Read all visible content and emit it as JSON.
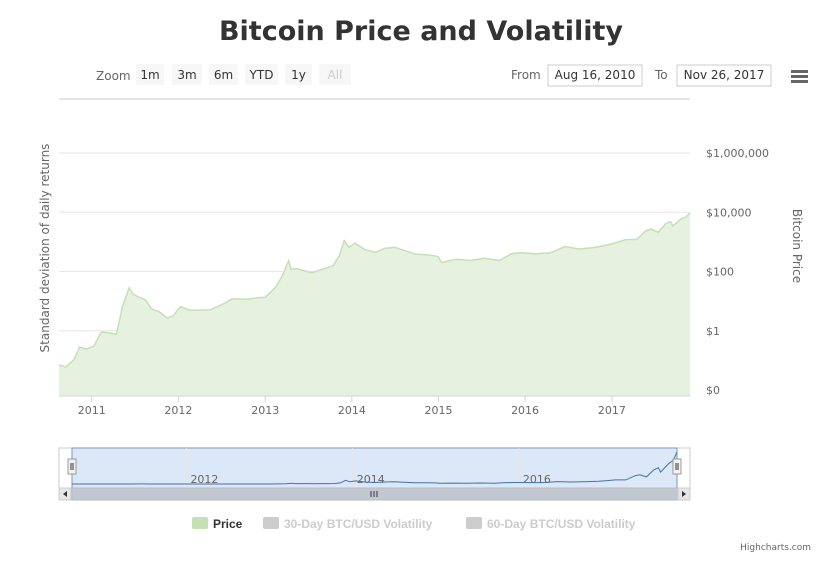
{
  "chart_data": {
    "type": "area",
    "title": "Bitcoin Price and Volatility",
    "left_axis_label": "Standard deviation of daily returns",
    "right_axis_label": "Bitcoin Price",
    "y_scale": "log",
    "y_ticks": [
      "$0",
      "$1",
      "$100",
      "$10,000",
      "$1,000,000"
    ],
    "y_tick_values": [
      0.01,
      1,
      100,
      10000,
      1000000
    ],
    "x_ticks": [
      "2011",
      "2012",
      "2013",
      "2014",
      "2015",
      "2016",
      "2017"
    ],
    "x_range": [
      "2010-08-16",
      "2017-11-26"
    ],
    "grid": true,
    "series": [
      {
        "name": "Price",
        "color": "#c5e0b4",
        "visible": true,
        "points": [
          [
            "2010-08-16",
            0.07
          ],
          [
            "2010-09-15",
            0.06
          ],
          [
            "2010-10-20",
            0.11
          ],
          [
            "2010-11-10",
            0.28
          ],
          [
            "2010-12-10",
            0.24
          ],
          [
            "2011-01-10",
            0.3
          ],
          [
            "2011-02-10",
            0.9
          ],
          [
            "2011-03-15",
            0.85
          ],
          [
            "2011-04-15",
            0.75
          ],
          [
            "2011-05-10",
            6.5
          ],
          [
            "2011-06-08",
            28
          ],
          [
            "2011-06-25",
            17
          ],
          [
            "2011-07-20",
            13.5
          ],
          [
            "2011-08-15",
            11
          ],
          [
            "2011-09-10",
            5.5
          ],
          [
            "2011-10-10",
            4.5
          ],
          [
            "2011-11-15",
            2.7
          ],
          [
            "2011-12-10",
            3.2
          ],
          [
            "2012-01-10",
            6.5
          ],
          [
            "2012-02-15",
            5
          ],
          [
            "2012-03-15",
            4.9
          ],
          [
            "2012-05-15",
            5.1
          ],
          [
            "2012-07-15",
            8.5
          ],
          [
            "2012-08-15",
            12
          ],
          [
            "2012-10-15",
            11.5
          ],
          [
            "2012-12-01",
            13
          ],
          [
            "2013-01-01",
            13.5
          ],
          [
            "2013-02-15",
            30
          ],
          [
            "2013-03-15",
            75
          ],
          [
            "2013-04-10",
            230
          ],
          [
            "2013-04-20",
            120
          ],
          [
            "2013-05-15",
            125
          ],
          [
            "2013-06-15",
            105
          ],
          [
            "2013-07-15",
            90
          ],
          [
            "2013-08-15",
            110
          ],
          [
            "2013-09-15",
            130
          ],
          [
            "2013-10-15",
            160
          ],
          [
            "2013-11-10",
            350
          ],
          [
            "2013-11-30",
            1100
          ],
          [
            "2013-12-20",
            650
          ],
          [
            "2014-01-15",
            900
          ],
          [
            "2014-02-25",
            550
          ],
          [
            "2014-04-10",
            440
          ],
          [
            "2014-05-20",
            600
          ],
          [
            "2014-07-01",
            650
          ],
          [
            "2014-08-15",
            500
          ],
          [
            "2014-09-30",
            380
          ],
          [
            "2014-11-15",
            370
          ],
          [
            "2014-12-30",
            320
          ],
          [
            "2015-01-15",
            200
          ],
          [
            "2015-03-15",
            260
          ],
          [
            "2015-05-15",
            235
          ],
          [
            "2015-07-15",
            280
          ],
          [
            "2015-09-15",
            235
          ],
          [
            "2015-11-05",
            400
          ],
          [
            "2015-12-15",
            430
          ],
          [
            "2016-02-15",
            400
          ],
          [
            "2016-04-15",
            425
          ],
          [
            "2016-06-18",
            700
          ],
          [
            "2016-08-15",
            575
          ],
          [
            "2016-10-15",
            640
          ],
          [
            "2016-12-15",
            790
          ],
          [
            "2017-01-10",
            900
          ],
          [
            "2017-03-01",
            1200
          ],
          [
            "2017-04-15",
            1200
          ],
          [
            "2017-05-25",
            2400
          ],
          [
            "2017-06-15",
            2700
          ],
          [
            "2017-07-15",
            2100
          ],
          [
            "2017-08-15",
            4100
          ],
          [
            "2017-09-05",
            4800
          ],
          [
            "2017-09-15",
            3500
          ],
          [
            "2017-10-20",
            6000
          ],
          [
            "2017-11-10",
            7000
          ],
          [
            "2017-11-26",
            9400
          ]
        ]
      },
      {
        "name": "30-Day BTC/USD Volatility",
        "color": "#cccccc",
        "visible": false
      },
      {
        "name": "60-Day BTC/USD Volatility",
        "color": "#cccccc",
        "visible": false
      }
    ]
  },
  "range_selector": {
    "zoom_label": "Zoom",
    "buttons": [
      "1m",
      "3m",
      "6m",
      "YTD",
      "1y",
      "All"
    ],
    "disabled_button": "All",
    "from_label": "From",
    "from_value": "Aug 16, 2010",
    "to_label": "To",
    "to_value": "Nov 26, 2017"
  },
  "navigator": {
    "labels": [
      "2012",
      "2014",
      "2016"
    ]
  },
  "credits": "Highcharts.com",
  "menu_icon": "hamburger-menu-icon"
}
